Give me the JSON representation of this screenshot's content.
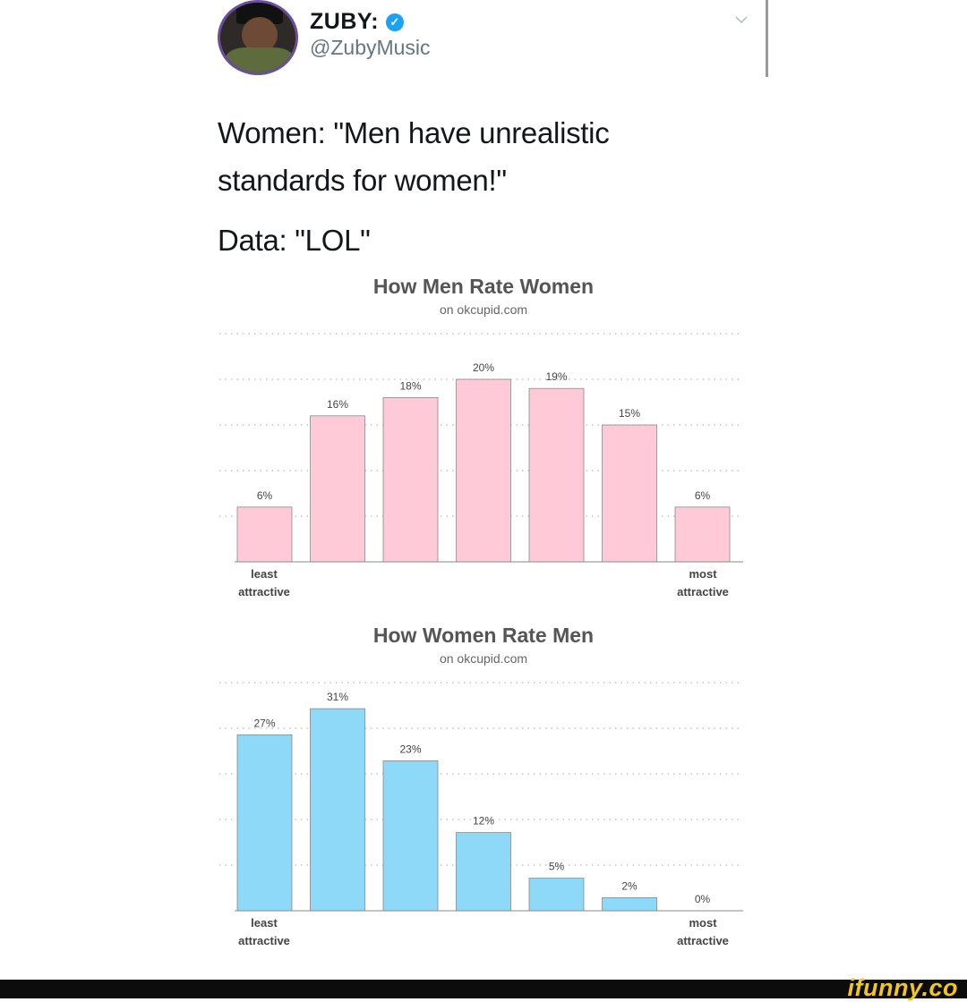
{
  "tweet": {
    "name": "ZUBY:",
    "handle": "@ZubyMusic",
    "lines": [
      "Women: \"Men have unrealistic",
      "standards for women!\"",
      "Data: \"LOL\""
    ]
  },
  "watermark": "ifunny.co",
  "colors": {
    "women_bars": "#ffcad8",
    "men_bars": "#8ed8f8",
    "verified": "#1da1f2",
    "watermark": "#f2c719"
  },
  "chart_data": [
    {
      "type": "bar",
      "title": "How Men Rate Women",
      "subtitle": "on okcupid.com",
      "categories": [
        "1",
        "2",
        "3",
        "4",
        "5",
        "6",
        "7"
      ],
      "values": [
        6,
        16,
        18,
        20,
        19,
        15,
        6
      ],
      "value_labels": [
        "6%",
        "16%",
        "18%",
        "20%",
        "19%",
        "15%",
        "6%"
      ],
      "x_left_label": [
        "least",
        "attractive"
      ],
      "x_right_label": [
        "most",
        "attractive"
      ],
      "ylim": [
        0,
        25
      ],
      "gridlines": [
        5,
        10,
        15,
        20,
        25
      ],
      "bar_color": "#ffcad8"
    },
    {
      "type": "bar",
      "title": "How Women Rate Men",
      "subtitle": "on okcupid.com",
      "categories": [
        "1",
        "2",
        "3",
        "4",
        "5",
        "6",
        "7"
      ],
      "values": [
        27,
        31,
        23,
        12,
        5,
        2,
        0
      ],
      "value_labels": [
        "27%",
        "31%",
        "23%",
        "12%",
        "5%",
        "2%",
        "0%"
      ],
      "x_left_label": [
        "least",
        "attractive"
      ],
      "x_right_label": [
        "most",
        "attractive"
      ],
      "ylim": [
        0,
        35
      ],
      "gridlines": [
        7,
        14,
        21,
        28,
        35
      ],
      "bar_color": "#8ed8f8"
    }
  ]
}
